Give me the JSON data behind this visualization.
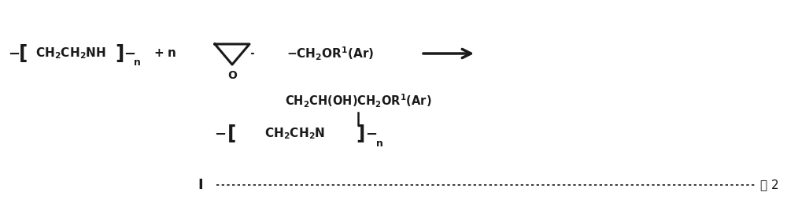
{
  "background_color": "#ffffff",
  "fig_width": 10.0,
  "fig_height": 2.63,
  "dpi": 100,
  "text_color": "#1a1a1a",
  "label_I": "I",
  "label_式2": "式 2",
  "reactant1": "-{CH₂CH₂NH}-ₙ",
  "reactant1_bracket": true,
  "plus_n": "+ n",
  "epoxide_label": "CH₂OR¹(Ar)",
  "product_side_chain": "CH₂CH(OH)CH₂OR¹(Ar)",
  "product_main": "-{CH₂CH₂N}-ₙ"
}
